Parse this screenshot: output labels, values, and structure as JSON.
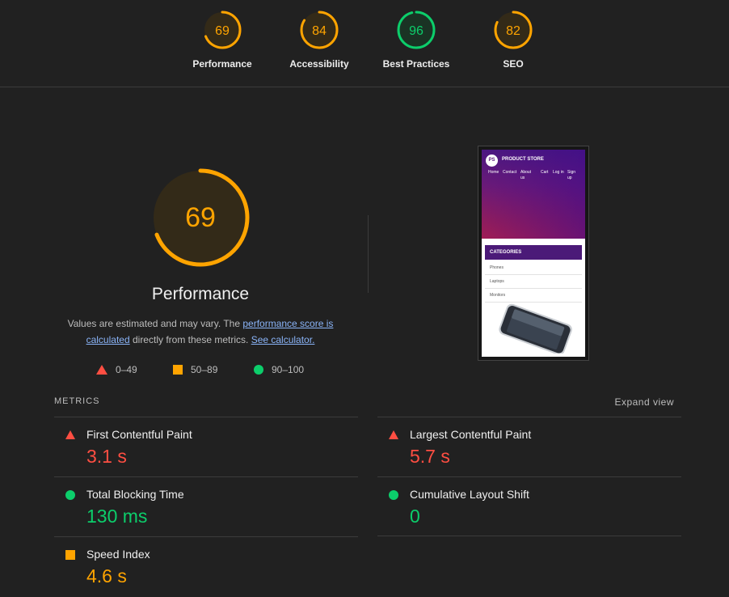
{
  "colors": {
    "bg": "#212121",
    "pass": "#0cce6b",
    "average": "#ffa400",
    "fail": "#ff4e42",
    "link": "#8ab4f8"
  },
  "category_scores": [
    {
      "label": "Performance",
      "score": 69,
      "status": "average"
    },
    {
      "label": "Accessibility",
      "score": 84,
      "status": "average"
    },
    {
      "label": "Best Practices",
      "score": 96,
      "status": "pass"
    },
    {
      "label": "SEO",
      "score": 82,
      "status": "average"
    }
  ],
  "performance": {
    "score": 69,
    "title": "Performance",
    "desc_prefix": "Values are estimated and may vary. The ",
    "link_score": "performance score is calculated",
    "desc_middle": " directly from these metrics. ",
    "link_calculator": "See calculator."
  },
  "legend": [
    {
      "range": "0–49",
      "icon": "triangle-icon"
    },
    {
      "range": "50–89",
      "icon": "square-icon"
    },
    {
      "range": "90–100",
      "icon": "circle-icon"
    }
  ],
  "screenshot": {
    "brand": "PRODUCT STORE",
    "logo_text": "PS",
    "nav": [
      "Home",
      "Contact",
      "About us",
      "Cart",
      "Log in",
      "Sign up"
    ],
    "categories_title": "CATEGORIES",
    "categories": [
      "Phones",
      "Laptops",
      "Monitors"
    ]
  },
  "metrics_header": "METRICS",
  "expand_label": "Expand view",
  "metrics": [
    {
      "name": "First Contentful Paint",
      "value": "3.1 s",
      "status": "fail"
    },
    {
      "name": "Largest Contentful Paint",
      "value": "5.7 s",
      "status": "fail"
    },
    {
      "name": "Total Blocking Time",
      "value": "130 ms",
      "status": "pass"
    },
    {
      "name": "Cumulative Layout Shift",
      "value": "0",
      "status": "pass"
    },
    {
      "name": "Speed Index",
      "value": "4.6 s",
      "status": "average"
    }
  ]
}
